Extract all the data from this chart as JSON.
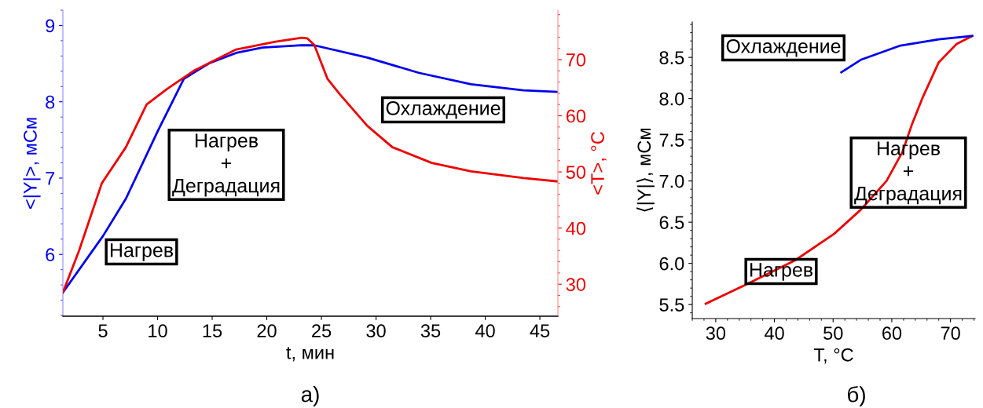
{
  "chart_data": [
    {
      "type": "line",
      "xlabel": "t, мин",
      "ylabel": "<|Y|>, мСм",
      "y2label": "<T>, °C",
      "xlim": [
        1.33,
        46.65
      ],
      "xticks": [
        5,
        10,
        15,
        20,
        25,
        30,
        35,
        40,
        45
      ],
      "ylim": [
        5.19,
        9.2
      ],
      "yticks": [
        6,
        7,
        8,
        9
      ],
      "y2lim": [
        24.3,
        78.8
      ],
      "y2ticks": [
        30,
        40,
        50,
        60,
        70
      ],
      "grid": false,
      "legend": false,
      "series": [
        {
          "color": "#0000ee",
          "x": [
            1.33,
            5,
            7.1,
            10,
            12.4,
            14.8,
            17.2,
            19.6,
            23.2,
            24.35,
            29.2,
            33.9,
            38.7,
            43.5,
            46.65
          ],
          "values": [
            5.5,
            6.24,
            6.73,
            7.61,
            8.3,
            8.51,
            8.64,
            8.71,
            8.74,
            8.74,
            8.58,
            8.38,
            8.23,
            8.15,
            8.13
          ]
        },
        {
          "color": "#ee0000",
          "axis": "y2",
          "x": [
            1.33,
            2.8,
            4.9,
            7.1,
            9.0,
            10.9,
            13.3,
            17.2,
            20.8,
            23.2,
            23.7,
            24.35,
            25.55,
            26.7,
            29.2,
            31.5,
            35.1,
            38.7,
            43.5,
            46.65
          ],
          "values": [
            28.5,
            35.9,
            48.0,
            54.4,
            62.0,
            64.8,
            68.0,
            71.8,
            73.2,
            73.9,
            73.8,
            72.6,
            66.6,
            63.8,
            58.2,
            54.4,
            51.6,
            50.1,
            48.9,
            48.3
          ]
        }
      ],
      "annotations": [
        "Нагрев",
        "Нагрев\n+\nДеградация",
        "Охлаждение",
        "а)"
      ]
    },
    {
      "type": "line",
      "xlabel": "T, °C",
      "ylabel": "⟨|Y|⟩, мСм",
      "xlim": [
        26.0,
        74.2
      ],
      "xticks": [
        30,
        40,
        50,
        60,
        70
      ],
      "ylim": [
        5.33,
        8.93
      ],
      "yticks": [
        {
          "value": 5.5,
          "label": "5.5"
        },
        {
          "value": 6,
          "label": "6.0"
        },
        {
          "value": 6.5,
          "label": "6.5"
        },
        {
          "value": 7,
          "label": "7.0"
        },
        {
          "value": 7.5,
          "label": "7.5"
        },
        {
          "value": 8,
          "label": "8.0"
        },
        {
          "value": 8.5,
          "label": "8.5"
        }
      ],
      "grid": false,
      "legend": false,
      "series": [
        {
          "color": "#ee0000",
          "x": [
            28.3,
            34.8,
            43.6,
            50.2,
            54.7,
            59.1,
            61.8,
            63.5,
            65.3,
            68.0,
            71.0,
            73.7
          ],
          "values": [
            5.51,
            5.73,
            6.04,
            6.36,
            6.65,
            7.0,
            7.35,
            7.7,
            8.02,
            8.44,
            8.66,
            8.76
          ]
        },
        {
          "color": "#0000ee",
          "x": [
            51.4,
            54.7,
            61.3,
            68.0,
            73.7
          ],
          "values": [
            8.32,
            8.47,
            8.64,
            8.72,
            8.76
          ]
        }
      ],
      "annotations": [
        "Охлаждение",
        "Нагрев\n+\nДеградация",
        "Нагрев",
        "б)"
      ]
    }
  ]
}
